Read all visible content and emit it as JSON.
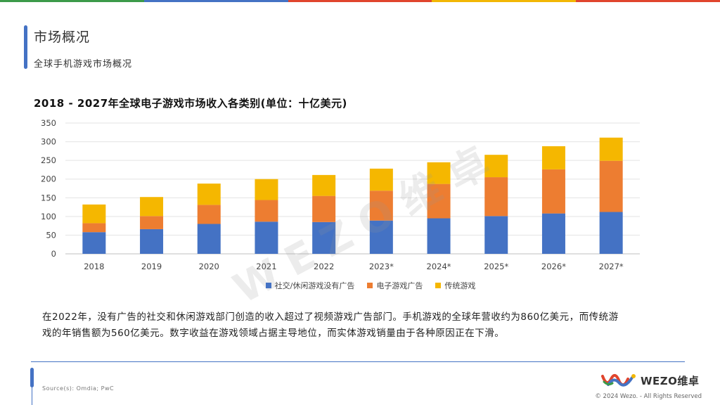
{
  "header": {
    "title": "市场概况",
    "subtitle": "全球手机游戏市场概况"
  },
  "colors": {
    "top_bar": [
      "#3C9A4A",
      "#4472C4",
      "#E0452D",
      "#F2B705",
      "#E0452D"
    ],
    "accent": "#4472C4"
  },
  "chart_data": {
    "type": "bar",
    "stacked": true,
    "title": "2018 - 2027年全球电子游戏市场收入各类别(单位：十亿美元)",
    "categories": [
      "2018",
      "2019",
      "2020",
      "2021",
      "2022",
      "2023*",
      "2024*",
      "2025*",
      "2026*",
      "2027*"
    ],
    "series": [
      {
        "name": "社交/休闲游戏没有广告",
        "color": "#4472C4",
        "values": [
          58,
          66,
          80,
          86,
          85,
          89,
          95,
          101,
          108,
          112
        ]
      },
      {
        "name": "电子游戏广告",
        "color": "#ED7D31",
        "values": [
          24,
          35,
          51,
          58,
          70,
          80,
          92,
          104,
          118,
          137
        ]
      },
      {
        "name": "传统游戏",
        "color": "#F5B700",
        "values": [
          50,
          51,
          57,
          56,
          56,
          59,
          58,
          60,
          62,
          62
        ]
      }
    ],
    "ylim": [
      0,
      350
    ],
    "yticks": [
      "0",
      "50",
      "100",
      "150",
      "200",
      "250",
      "300",
      "350"
    ],
    "grid": true,
    "legend_position": "bottom"
  },
  "watermark": "WEZO维卓",
  "paragraph": "在2022年，没有广告的社交和休闲游戏部门创造的收入超过了视频游戏广告部门。手机游戏的全球年营收约为860亿美元，而传统游戏的年销售额为560亿美元。数字收益在游戏领域占据主导地位，而实体游戏销量由于各种原因正在下滑。",
  "footer": {
    "source": "Source(s): Omdia; PwC",
    "logo_text": "WEZO维卓",
    "copyright": "© 2024 Wezo. - All Rights Reserved"
  }
}
